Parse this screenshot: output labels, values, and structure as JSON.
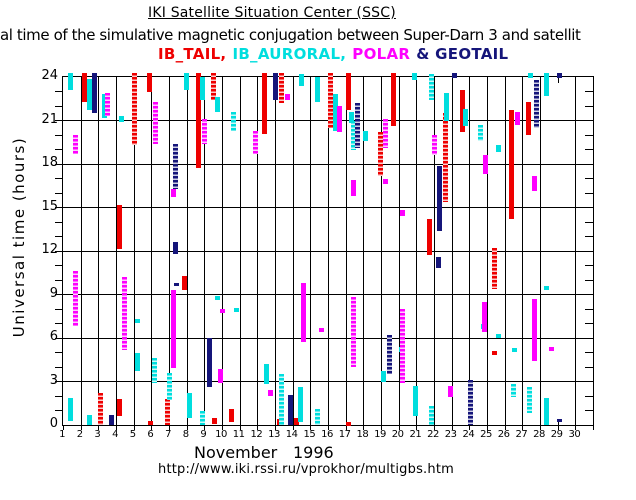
{
  "header": {
    "title": "IKI Satellite Situation Center (SSC)",
    "subtitle": "al time of the simulative magnetic conjugation between Super-Darn 3 and satellit"
  },
  "footer": {
    "month": "November",
    "year": "1996",
    "url": "http://www.iki.rssi.ru/vprokhor/multigbs.htm"
  },
  "chart_data": {
    "type": "bar",
    "variant": "daily time-interval (gantt-like) chart of magnetic conjugation times",
    "title": "IKI Satellite Situation Center (SSC)",
    "ylabel": "Universal time (hours)",
    "ylim": [
      0,
      24
    ],
    "y_ticks": [
      0,
      3,
      6,
      9,
      12,
      15,
      18,
      21,
      24
    ],
    "x_days": [
      1,
      2,
      3,
      4,
      5,
      6,
      7,
      8,
      9,
      10,
      11,
      12,
      13,
      14,
      15,
      16,
      17,
      18,
      19,
      20,
      21,
      22,
      23,
      24,
      25,
      26,
      27,
      28,
      29,
      30
    ],
    "x_month": "November 1996",
    "grid": "horizontal lines every 3 hours, vertical line at each day",
    "legend_position": "top-center",
    "layout_hints": {
      "partial_vline_day": 29
    },
    "interval_format": [
      "day",
      "start_hour",
      "end_hour",
      "x_offset_fraction",
      "dotted"
    ],
    "series": [
      {
        "name": "IB_TAIL",
        "legend_label": "IB_TAIL,",
        "color": "#ee0000",
        "intervals": [
          [
            2,
            22.3,
            24.3,
            0.1,
            0
          ],
          [
            5,
            23.0,
            24.3,
            0.78,
            0
          ],
          [
            4,
            19.3,
            24.3,
            0.9,
            1
          ],
          [
            9,
            22.4,
            24.3,
            0.4,
            1
          ],
          [
            8,
            17.7,
            24.3,
            0.55,
            0
          ],
          [
            12,
            20.1,
            24.3,
            0.28,
            0
          ],
          [
            13,
            22.2,
            24.3,
            0.25,
            1
          ],
          [
            16,
            20.5,
            24.3,
            0.0,
            1
          ],
          [
            17,
            21.7,
            24.3,
            0.0,
            0
          ],
          [
            19,
            20.6,
            24.3,
            0.58,
            0
          ],
          [
            23,
            20.2,
            23.1,
            0.45,
            0
          ],
          [
            27,
            20.0,
            22.3,
            0.18,
            0
          ],
          [
            18,
            17.2,
            20.2,
            0.82,
            1
          ],
          [
            26,
            14.2,
            21.7,
            0.23,
            0
          ],
          [
            22,
            15.4,
            21.5,
            0.48,
            1
          ],
          [
            4,
            12.1,
            15.2,
            0.05,
            0
          ],
          [
            21,
            11.7,
            14.2,
            0.6,
            0
          ],
          [
            25,
            9.4,
            12.2,
            0.28,
            1
          ],
          [
            7,
            9.3,
            10.3,
            0.72,
            0
          ],
          [
            25,
            4.9,
            5.1,
            0.28,
            0
          ],
          [
            3,
            0.0,
            2.2,
            0.0,
            1
          ],
          [
            4,
            0.65,
            1.8,
            0.05,
            0
          ],
          [
            6,
            0.0,
            1.8,
            0.75,
            1
          ],
          [
            10,
            0.2,
            1.1,
            0.42,
            0
          ],
          [
            9,
            0.1,
            0.5,
            0.45,
            0
          ],
          [
            13,
            0.0,
            0.4,
            0.1,
            0
          ],
          [
            14,
            0.0,
            0.5,
            0.05,
            0
          ],
          [
            17,
            0.0,
            0.2,
            0.0,
            0
          ],
          [
            5,
            0.0,
            0.25,
            0.83,
            0
          ]
        ]
      },
      {
        "name": "IB_AURORAL",
        "legend_label": "IB_AURORAL,",
        "color": "#00dede",
        "intervals": [
          [
            1,
            23.1,
            24.3,
            0.28,
            0
          ],
          [
            2,
            21.7,
            23.9,
            0.33,
            0
          ],
          [
            3,
            21.2,
            22.8,
            0.18,
            0
          ],
          [
            4,
            20.9,
            21.3,
            0.18,
            0
          ],
          [
            7,
            23.1,
            24.3,
            0.82,
            0
          ],
          [
            8,
            22.4,
            24.0,
            0.73,
            0
          ],
          [
            9,
            21.6,
            22.6,
            0.6,
            0
          ],
          [
            10,
            20.3,
            21.6,
            0.5,
            1
          ],
          [
            14,
            23.4,
            24.2,
            0.33,
            0
          ],
          [
            15,
            22.3,
            24.0,
            0.25,
            0
          ],
          [
            16,
            20.3,
            22.8,
            0.28,
            0
          ],
          [
            17,
            20.8,
            21.6,
            0.2,
            0
          ],
          [
            17,
            19.0,
            21.0,
            0.28,
            1
          ],
          [
            18,
            19.6,
            20.3,
            0.0,
            0
          ],
          [
            20,
            23.8,
            24.3,
            0.78,
            0
          ],
          [
            21,
            22.4,
            24.2,
            0.7,
            1
          ],
          [
            22,
            21.0,
            22.9,
            0.58,
            0
          ],
          [
            23,
            20.6,
            21.8,
            0.63,
            0
          ],
          [
            24,
            19.6,
            20.7,
            0.5,
            1
          ],
          [
            25,
            18.8,
            19.3,
            0.5,
            0
          ],
          [
            28,
            22.7,
            24.3,
            0.23,
            0
          ],
          [
            27,
            23.9,
            24.3,
            0.3,
            0
          ],
          [
            9,
            8.6,
            8.9,
            0.58,
            0
          ],
          [
            10,
            7.8,
            8.1,
            0.7,
            0
          ],
          [
            5,
            7.0,
            7.3,
            0.08,
            0
          ],
          [
            5,
            3.7,
            5.0,
            0.1,
            0
          ],
          [
            6,
            2.9,
            4.6,
            0.05,
            1
          ],
          [
            6,
            1.7,
            3.6,
            0.9,
            1
          ],
          [
            8,
            0.5,
            2.2,
            0.0,
            0
          ],
          [
            8,
            0.0,
            1.0,
            0.76,
            1
          ],
          [
            12,
            2.8,
            4.2,
            0.38,
            0
          ],
          [
            13,
            0.0,
            3.5,
            0.23,
            1
          ],
          [
            14,
            0.2,
            2.6,
            0.28,
            0
          ],
          [
            15,
            0.0,
            1.1,
            0.28,
            1
          ],
          [
            19,
            3.0,
            3.7,
            0.0,
            0
          ],
          [
            20,
            5.0,
            5.4,
            0.03,
            0
          ],
          [
            20,
            0.6,
            2.7,
            0.8,
            0
          ],
          [
            21,
            0.0,
            1.3,
            0.7,
            1
          ],
          [
            24,
            6.6,
            7.0,
            0.66,
            0
          ],
          [
            25,
            6.0,
            6.3,
            0.48,
            0
          ],
          [
            26,
            5.0,
            5.3,
            0.43,
            0
          ],
          [
            26,
            1.9,
            2.8,
            0.38,
            1
          ],
          [
            27,
            0.85,
            2.6,
            0.28,
            1
          ],
          [
            28,
            9.3,
            9.6,
            0.23,
            0
          ],
          [
            28,
            0.0,
            1.9,
            0.23,
            0
          ],
          [
            1,
            0.3,
            1.9,
            0.28,
            0
          ],
          [
            2,
            0.0,
            0.7,
            0.33,
            0
          ]
        ]
      },
      {
        "name": "POLAR",
        "legend_label": "POLAR",
        "color": "#ff00ff",
        "intervals": [
          [
            1,
            18.7,
            20.0,
            0.58,
            1
          ],
          [
            1,
            6.8,
            10.6,
            0.58,
            1
          ],
          [
            3,
            21.3,
            22.9,
            0.4,
            1
          ],
          [
            4,
            5.2,
            10.2,
            0.36,
            1
          ],
          [
            6,
            19.4,
            22.3,
            0.1,
            1
          ],
          [
            7,
            15.7,
            16.3,
            0.13,
            0
          ],
          [
            7,
            3.9,
            9.3,
            0.13,
            0
          ],
          [
            8,
            19.4,
            21.1,
            0.85,
            1
          ],
          [
            9,
            7.7,
            8.0,
            0.9,
            0
          ],
          [
            9,
            2.9,
            3.9,
            0.78,
            0
          ],
          [
            11,
            18.7,
            20.3,
            0.73,
            1
          ],
          [
            12,
            2.0,
            2.4,
            0.6,
            0
          ],
          [
            13,
            22.4,
            22.8,
            0.58,
            0
          ],
          [
            14,
            5.7,
            9.8,
            0.48,
            0
          ],
          [
            15,
            6.4,
            6.7,
            0.48,
            0
          ],
          [
            16,
            20.2,
            22.0,
            0.53,
            0
          ],
          [
            17,
            15.8,
            16.9,
            0.28,
            0
          ],
          [
            17,
            4.0,
            8.8,
            0.28,
            1
          ],
          [
            19,
            19.1,
            21.1,
            0.13,
            1
          ],
          [
            19,
            16.6,
            17.0,
            0.13,
            0
          ],
          [
            20,
            14.4,
            14.8,
            0.08,
            0
          ],
          [
            20,
            2.9,
            8.0,
            0.1,
            1
          ],
          [
            21,
            18.6,
            20.0,
            0.86,
            1
          ],
          [
            22,
            1.9,
            2.7,
            0.8,
            0
          ],
          [
            24,
            17.3,
            18.6,
            0.76,
            0
          ],
          [
            24,
            6.4,
            8.5,
            0.7,
            0
          ],
          [
            26,
            20.7,
            21.6,
            0.6,
            0
          ],
          [
            27,
            16.1,
            17.2,
            0.54,
            0
          ],
          [
            27,
            4.4,
            8.7,
            0.53,
            0
          ],
          [
            28,
            5.1,
            5.4,
            0.48,
            0
          ]
        ]
      },
      {
        "name": "GEOTAIL",
        "legend_label": "& GEOTAIL",
        "color": "#15157a",
        "intervals": [
          [
            2,
            21.5,
            24.3,
            0.65,
            0
          ],
          [
            3,
            0.0,
            0.7,
            0.6,
            0
          ],
          [
            7,
            16.3,
            19.4,
            0.2,
            1
          ],
          [
            7,
            11.8,
            12.6,
            0.23,
            0
          ],
          [
            7,
            9.6,
            9.8,
            0.26,
            0
          ],
          [
            9,
            2.6,
            6.0,
            0.13,
            0
          ],
          [
            12,
            22.4,
            24.3,
            0.88,
            0
          ],
          [
            13,
            0.0,
            2.1,
            0.73,
            0
          ],
          [
            17,
            19.1,
            22.2,
            0.53,
            1
          ],
          [
            19,
            3.5,
            6.2,
            0.33,
            1
          ],
          [
            22,
            13.4,
            17.9,
            0.18,
            0
          ],
          [
            22,
            10.8,
            11.6,
            0.13,
            0
          ],
          [
            23,
            23.9,
            24.3,
            0.02,
            0
          ],
          [
            24,
            0.0,
            3.1,
            -0.05,
            1
          ],
          [
            27,
            20.5,
            23.8,
            0.65,
            1
          ],
          [
            29,
            23.95,
            24.3,
            -0.05,
            0
          ],
          [
            29,
            0.2,
            0.45,
            -0.05,
            0
          ]
        ]
      }
    ]
  }
}
